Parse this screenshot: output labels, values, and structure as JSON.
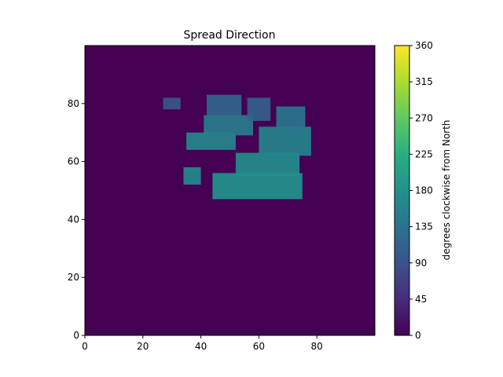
{
  "chart_data": {
    "type": "heatmap",
    "title": "Spread Direction",
    "xlabel": "",
    "ylabel": "",
    "xlim": [
      0,
      100
    ],
    "ylim": [
      0,
      100
    ],
    "x_ticks": [
      "0",
      "20",
      "40",
      "60",
      "80"
    ],
    "y_ticks": [
      "0",
      "20",
      "40",
      "60",
      "80"
    ],
    "colorbar": {
      "label": "degrees clockwise from North",
      "range": [
        0,
        360
      ],
      "ticks": [
        "0",
        "45",
        "90",
        "135",
        "180",
        "225",
        "270",
        "315",
        "360"
      ],
      "colormap": "viridis"
    },
    "background_value": 0,
    "regions": [
      {
        "x": [
          44,
          75
        ],
        "y": [
          47,
          56
        ],
        "value": 185
      },
      {
        "x": [
          52,
          74
        ],
        "y": [
          55,
          63
        ],
        "value": 175
      },
      {
        "x": [
          60,
          78
        ],
        "y": [
          62,
          72
        ],
        "value": 160
      },
      {
        "x": [
          66,
          76
        ],
        "y": [
          71,
          79
        ],
        "value": 140
      },
      {
        "x": [
          35,
          52
        ],
        "y": [
          64,
          70
        ],
        "value": 165
      },
      {
        "x": [
          41,
          58
        ],
        "y": [
          69,
          76
        ],
        "value": 150
      },
      {
        "x": [
          42,
          54
        ],
        "y": [
          76,
          83
        ],
        "value": 120
      },
      {
        "x": [
          56,
          64
        ],
        "y": [
          74,
          82
        ],
        "value": 110
      },
      {
        "x": [
          34,
          40
        ],
        "y": [
          52,
          58
        ],
        "value": 170
      },
      {
        "x": [
          27,
          33
        ],
        "y": [
          78,
          82
        ],
        "value": 95
      }
    ]
  }
}
